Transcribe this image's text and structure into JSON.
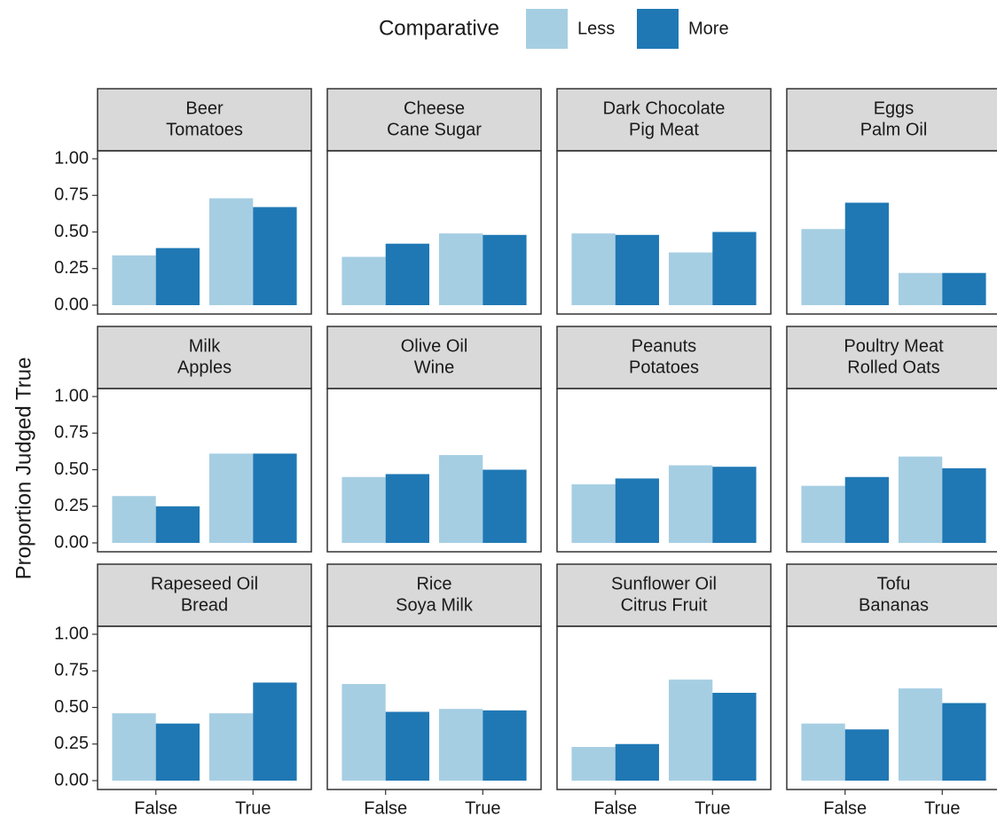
{
  "chart_data": {
    "type": "bar",
    "y_label": "Proportion Judged True",
    "legend_title": "Comparative",
    "legend": [
      {
        "name": "Less",
        "color": "#a6cee3"
      },
      {
        "name": "More",
        "color": "#1f78b4"
      }
    ],
    "categories": [
      "False",
      "True"
    ],
    "ylim": [
      0,
      1
    ],
    "yticks": [
      {
        "value": 0,
        "label": "0.00"
      },
      {
        "value": 0.25,
        "label": "0.25"
      },
      {
        "value": 0.5,
        "label": "0.50"
      },
      {
        "value": 0.75,
        "label": "0.75"
      },
      {
        "value": 1,
        "label": "1.00"
      }
    ],
    "facets": [
      {
        "title": [
          "Beer",
          "Tomatoes"
        ],
        "series": [
          {
            "values": [
              0.34,
              0.73
            ]
          },
          {
            "values": [
              0.39,
              0.67
            ]
          }
        ]
      },
      {
        "title": [
          "Cheese",
          "Cane Sugar"
        ],
        "series": [
          {
            "values": [
              0.33,
              0.49
            ]
          },
          {
            "values": [
              0.42,
              0.48
            ]
          }
        ]
      },
      {
        "title": [
          "Dark Chocolate",
          "Pig Meat"
        ],
        "series": [
          {
            "values": [
              0.49,
              0.36
            ]
          },
          {
            "values": [
              0.48,
              0.5
            ]
          }
        ]
      },
      {
        "title": [
          "Eggs",
          "Palm Oil"
        ],
        "series": [
          {
            "values": [
              0.52,
              0.22
            ]
          },
          {
            "values": [
              0.7,
              0.22
            ]
          }
        ]
      },
      {
        "title": [
          "Milk",
          "Apples"
        ],
        "series": [
          {
            "values": [
              0.32,
              0.61
            ]
          },
          {
            "values": [
              0.25,
              0.61
            ]
          }
        ]
      },
      {
        "title": [
          "Olive Oil",
          "Wine"
        ],
        "series": [
          {
            "values": [
              0.45,
              0.6
            ]
          },
          {
            "values": [
              0.47,
              0.5
            ]
          }
        ]
      },
      {
        "title": [
          "Peanuts",
          "Potatoes"
        ],
        "series": [
          {
            "values": [
              0.4,
              0.53
            ]
          },
          {
            "values": [
              0.44,
              0.52
            ]
          }
        ]
      },
      {
        "title": [
          "Poultry Meat",
          "Rolled Oats"
        ],
        "series": [
          {
            "values": [
              0.39,
              0.59
            ]
          },
          {
            "values": [
              0.45,
              0.51
            ]
          }
        ]
      },
      {
        "title": [
          "Rapeseed Oil",
          "Bread"
        ],
        "series": [
          {
            "values": [
              0.46,
              0.46
            ]
          },
          {
            "values": [
              0.39,
              0.67
            ]
          }
        ]
      },
      {
        "title": [
          "Rice",
          "Soya Milk"
        ],
        "series": [
          {
            "values": [
              0.66,
              0.49
            ]
          },
          {
            "values": [
              0.47,
              0.48
            ]
          }
        ]
      },
      {
        "title": [
          "Sunflower Oil",
          "Citrus Fruit"
        ],
        "series": [
          {
            "values": [
              0.23,
              0.69
            ]
          },
          {
            "values": [
              0.25,
              0.6
            ]
          }
        ]
      },
      {
        "title": [
          "Tofu",
          "Bananas"
        ],
        "series": [
          {
            "values": [
              0.39,
              0.63
            ]
          },
          {
            "values": [
              0.35,
              0.53
            ]
          }
        ]
      }
    ]
  }
}
